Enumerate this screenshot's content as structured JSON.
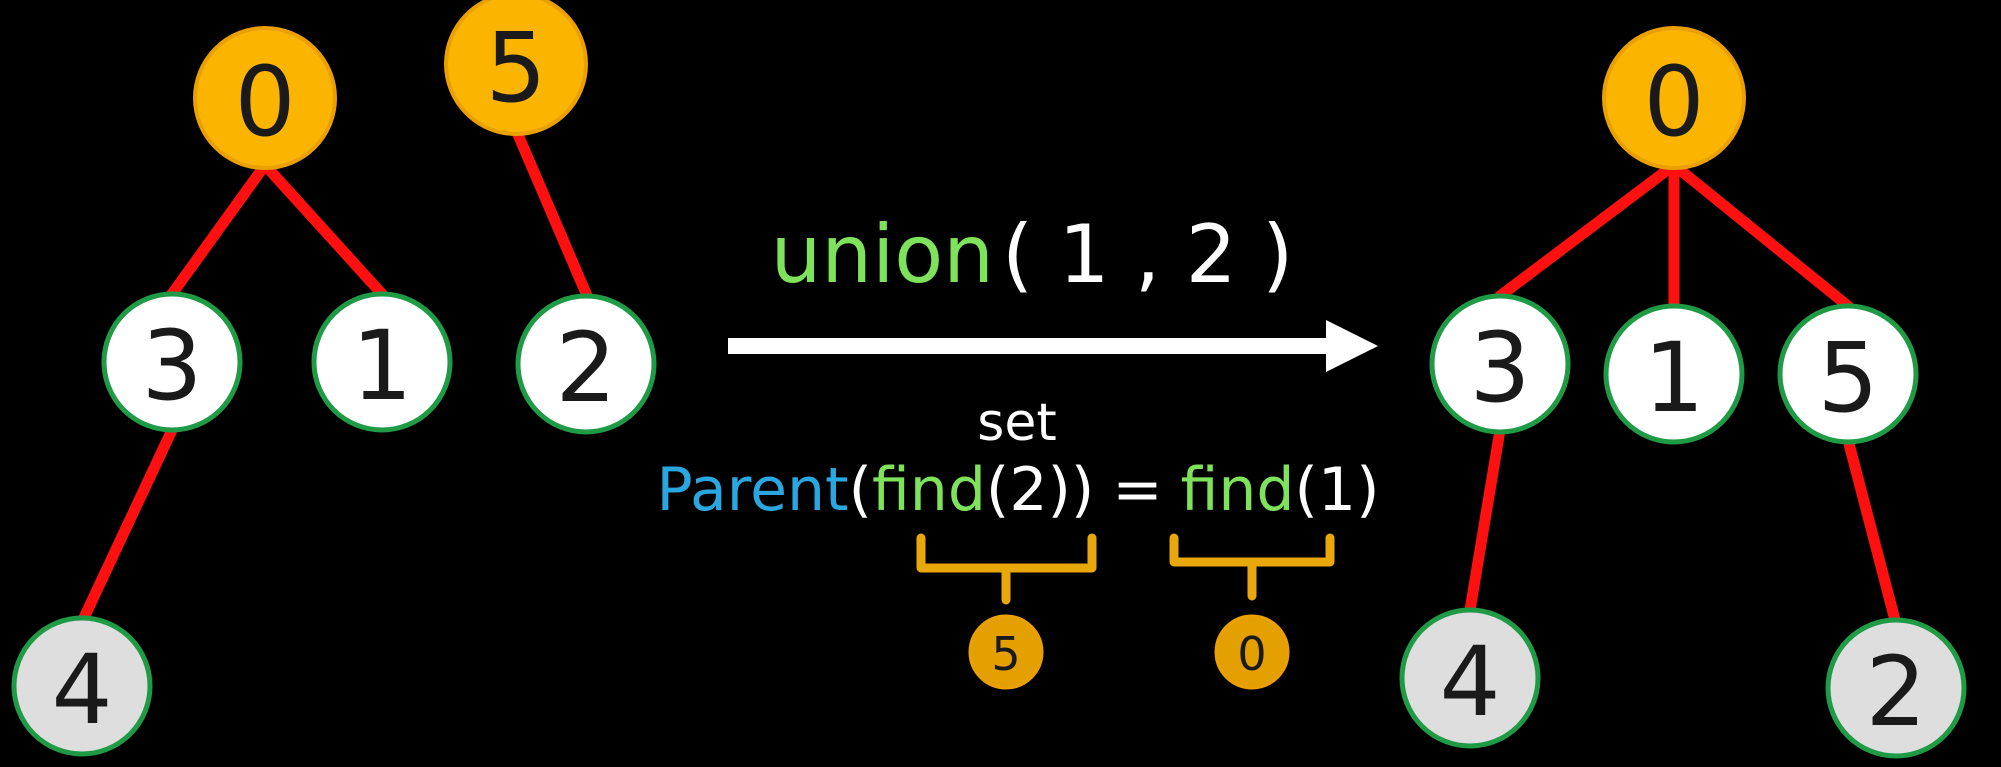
{
  "colors": {
    "background": "#000000",
    "edge": "#ff1010",
    "root_fill": "#fbb400",
    "root_stroke": "#e9a000",
    "node_fill_white": "#ffffff",
    "node_fill_grey": "#dedede",
    "node_stroke": "#1f9a45",
    "text_dark": "#1a1a1a",
    "arrow": "#ffffff",
    "func_green": "#7ee25a",
    "parent_blue": "#2aa6e0",
    "paren_white": "#ffffff",
    "brace": "#e8a70a",
    "result_fill": "#e3a000"
  },
  "before": {
    "tree_a": {
      "root": "0",
      "children": [
        "3",
        "1"
      ],
      "grandchild": "4"
    },
    "tree_b": {
      "root": "5",
      "child": "2"
    }
  },
  "operation": {
    "func": "union",
    "args": "( 1 , 2 )",
    "keyword": "set",
    "parent": "Parent",
    "open_paren": "(",
    "find_left": "find",
    "find_left_arg": "(2))",
    "equals": "=",
    "find_right": "find",
    "find_right_arg": "(1)",
    "result_left": "5",
    "result_right": "0"
  },
  "after": {
    "root": "0",
    "children": [
      "3",
      "1",
      "5"
    ],
    "grandchild_of_3": "4",
    "grandchild_of_5": "2"
  }
}
